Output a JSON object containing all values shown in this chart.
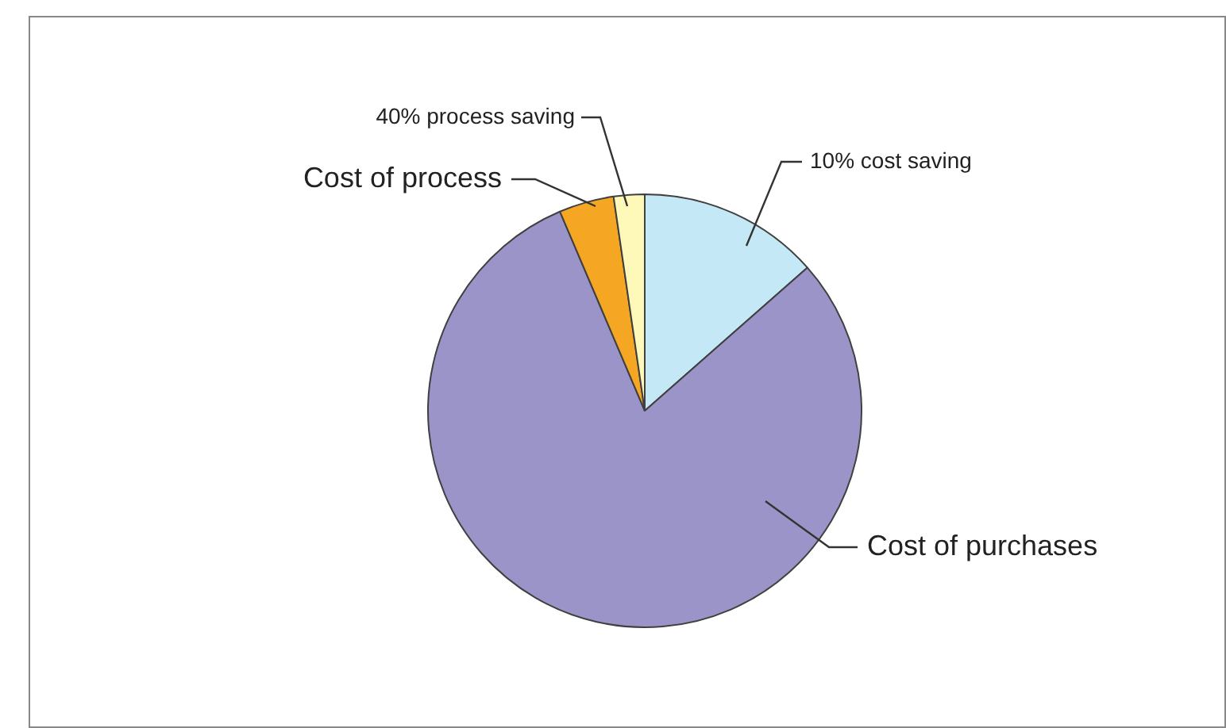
{
  "chart_data": {
    "type": "pie",
    "categories": [
      "10% cost saving",
      "Cost of purchases",
      "Cost of process",
      "40% process saving"
    ],
    "values": [
      13.5,
      80.1,
      4.1,
      2.3
    ],
    "colors": [
      "#c5e8f7",
      "#9b94c8",
      "#f5a623",
      "#fef9b8"
    ],
    "legend": false
  }
}
